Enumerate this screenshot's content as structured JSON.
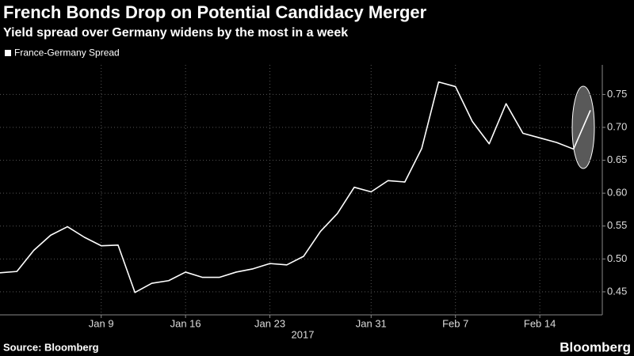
{
  "chart_data": {
    "type": "line",
    "title": "French Bonds Drop on Potential Candidacy Merger",
    "subtitle": "Yield spread over Germany widens by the most in a week",
    "x": [
      "2016-12-30",
      "2017-01-02",
      "2017-01-03",
      "2017-01-04",
      "2017-01-05",
      "2017-01-06",
      "2017-01-09",
      "2017-01-10",
      "2017-01-11",
      "2017-01-12",
      "2017-01-13",
      "2017-01-16",
      "2017-01-17",
      "2017-01-18",
      "2017-01-19",
      "2017-01-20",
      "2017-01-23",
      "2017-01-24",
      "2017-01-25",
      "2017-01-26",
      "2017-01-27",
      "2017-01-30",
      "2017-01-31",
      "2017-02-01",
      "2017-02-02",
      "2017-02-03",
      "2017-02-06",
      "2017-02-07",
      "2017-02-08",
      "2017-02-09",
      "2017-02-10",
      "2017-02-13",
      "2017-02-14",
      "2017-02-15",
      "2017-02-16",
      "2017-02-17"
    ],
    "series": [
      {
        "name": "France-Germany Spread",
        "color": "#ffffff",
        "values": [
          0.479,
          0.481,
          0.513,
          0.536,
          0.549,
          0.533,
          0.52,
          0.521,
          0.449,
          0.463,
          0.467,
          0.48,
          0.472,
          0.472,
          0.48,
          0.485,
          0.493,
          0.491,
          0.504,
          0.542,
          0.569,
          0.609,
          0.602,
          0.619,
          0.617,
          0.668,
          0.769,
          0.762,
          0.709,
          0.675,
          0.736,
          0.691,
          0.684,
          0.677,
          0.667,
          0.726
        ]
      }
    ],
    "xticks": [
      {
        "value": "2017-01-09",
        "label": "Jan 9"
      },
      {
        "value": "2017-01-16",
        "label": "Jan 16"
      },
      {
        "value": "2017-01-23",
        "label": "Jan 23"
      },
      {
        "value": "2017-01-31",
        "label": "Jan 31"
      },
      {
        "value": "2017-02-07",
        "label": "Feb 7"
      },
      {
        "value": "2017-02-14",
        "label": "Feb 14"
      }
    ],
    "x_year_label": "2017",
    "ylim": [
      0.415,
      0.795
    ],
    "yticks": [
      0.45,
      {
        "value": 0.5,
        "label": "0.50"
      },
      0.55,
      {
        "value": 0.6,
        "label": "0.60"
      },
      0.65,
      {
        "value": 0.7,
        "label": "0.70"
      },
      0.75
    ],
    "grid": true,
    "source": "Source: Bloomberg",
    "brand": "Bloomberg"
  }
}
